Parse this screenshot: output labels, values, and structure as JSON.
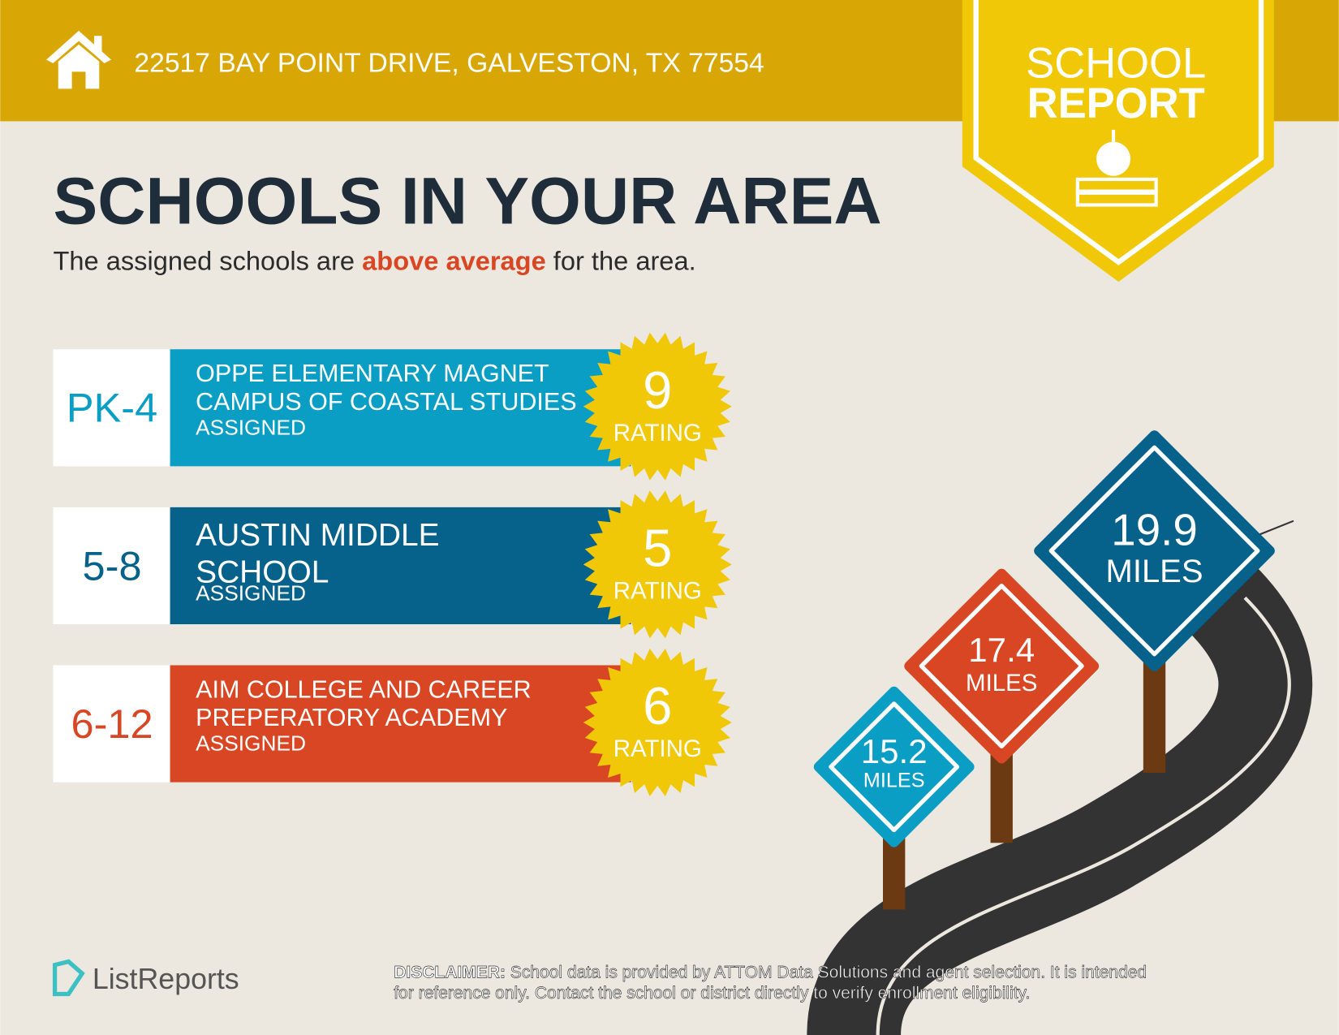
{
  "header": {
    "address": "22517 BAY POINT DRIVE, GALVESTON, TX 77554"
  },
  "badge": {
    "line1": "SCHOOL",
    "line2": "REPORT"
  },
  "heading": "SCHOOLS IN YOUR AREA",
  "subtitle": {
    "before": "The assigned schools are ",
    "highlight": "above average",
    "after": " for the area."
  },
  "schools": [
    {
      "grades": "PK-4",
      "name_lines": [
        "OPPE ELEMENTARY MAGNET",
        "CAMPUS OF COASTAL STUDIES"
      ],
      "status": "ASSIGNED",
      "rating": 9,
      "rating_label": "RATING"
    },
    {
      "grades": "5-8",
      "name_lines": [
        "AUSTIN MIDDLE",
        "SCHOOL"
      ],
      "status": "ASSIGNED",
      "rating": 5,
      "rating_label": "RATING"
    },
    {
      "grades": "6-12",
      "name_lines": [
        "AIM COLLEGE AND CAREER",
        "PREPERATORY ACADEMY"
      ],
      "status": "ASSIGNED",
      "rating": 6,
      "rating_label": "RATING"
    }
  ],
  "distances": [
    {
      "value": 19.9,
      "unit": "MILES"
    },
    {
      "value": 17.4,
      "unit": "MILES"
    },
    {
      "value": 15.2,
      "unit": "MILES"
    }
  ],
  "footer": {
    "logo": "ListReports",
    "disclaimer_label": "DISCLAIMER:",
    "disclaimer_lines": [
      "School data is provided by ATTOM Data Solutions and agent selection. It is intended",
      "for reference only. Contact the school or district directly to verify enrollment eligibility."
    ]
  }
}
